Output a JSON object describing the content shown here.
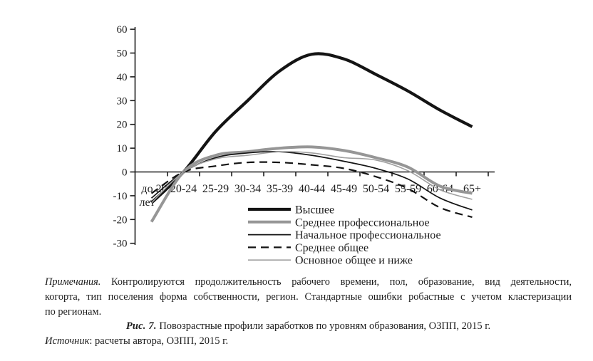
{
  "figure": {
    "notes": {
      "label": "Примечания.",
      "line1_rest": " Контролируются продолжительность рабочего времени, пол, образование, вид деятельности,",
      "line2": "когорта, тип поселения форма собственности, регион. Стандартные ошибки робастные с учетом кластеризации",
      "line3": "по регионам."
    },
    "caption": {
      "label": "Рис. 7.",
      "text": " Повозрастные профили заработков по уровням образования, ОЗПП, 2015 г."
    },
    "source": {
      "label": "Источник",
      "text": ": расчеты автора, ОЗПП, 2015 г."
    }
  },
  "chart_data": {
    "type": "line",
    "title": "",
    "xlabel": "",
    "ylabel": "",
    "categories": [
      "до 20 лет",
      "20-24",
      "25-29",
      "30-34",
      "35-39",
      "40-44",
      "45-49",
      "50-54",
      "55-59",
      "60-64",
      "65+"
    ],
    "series": [
      {
        "name": "Высшее",
        "values": [
          -13,
          0,
          17,
          30,
          42.5,
          49.5,
          47.5,
          41,
          34,
          26,
          19
        ],
        "color": "#141414",
        "width": 4.2,
        "dash": null
      },
      {
        "name": "Среднее профессиональное",
        "values": [
          -21,
          0,
          7,
          8.5,
          10,
          10.5,
          9,
          6,
          2,
          -6,
          -9
        ],
        "color": "#969696",
        "width": 4.0,
        "dash": null
      },
      {
        "name": "Начальное профессиональное",
        "values": [
          -11,
          0,
          6,
          8,
          8.5,
          7,
          4.5,
          1.5,
          -3,
          -11,
          -16
        ],
        "color": "#141414",
        "width": 1.7,
        "dash": null
      },
      {
        "name": "Среднее общее",
        "values": [
          -9,
          0,
          2.5,
          4,
          4,
          3,
          1.5,
          -2,
          -7,
          -15,
          -19
        ],
        "color": "#141414",
        "width": 2.2,
        "dash": "11 7"
      },
      {
        "name": "Основное общее и ниже",
        "values": [
          -13,
          0,
          5.5,
          7,
          8.5,
          8,
          6,
          5,
          0.5,
          -7.5,
          -11.5
        ],
        "color": "#a0a0a0",
        "width": 1.6,
        "dash": null
      }
    ],
    "ylim": [
      -30,
      60
    ],
    "ytick_step": 10,
    "grid": false,
    "legend_position": "inside-bottom",
    "legend": [
      "Высшее",
      "Среднее профессиональное",
      "Начальное профессиональное",
      "Среднее общее",
      "Основное общее и ниже"
    ]
  }
}
